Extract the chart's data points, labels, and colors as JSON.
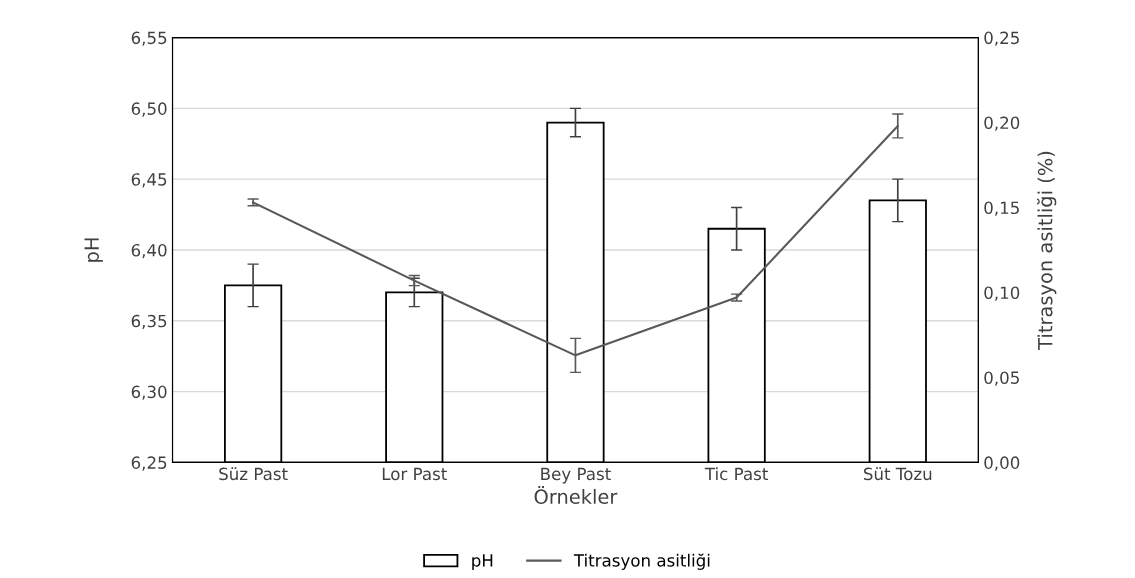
{
  "chart_data": {
    "type": "bar",
    "xlabel": "Örnekler",
    "ylabel": "pH",
    "y2label": "Titrasyon asitliği (%)",
    "categories": [
      "Süz Past",
      "Lor Past",
      "Bey Past",
      "Tic Past",
      "Süt Tozu"
    ],
    "series": [
      {
        "name": "pH",
        "color": "#ffffff",
        "values": [
          6.375,
          6.37,
          6.49,
          6.415,
          6.435
        ],
        "errors": [
          0.015,
          0.01,
          0.01,
          0.015,
          0.015
        ]
      },
      {
        "name": "Titrasyon asitliği",
        "type": "line",
        "axis": "y2",
        "color": "#595959",
        "values": [
          0.153,
          0.107,
          0.063,
          0.097,
          0.198
        ],
        "errors": [
          0.002,
          0.003,
          0.01,
          0.002,
          0.007
        ]
      }
    ],
    "ylim": [
      6.25,
      6.55
    ],
    "yticks": [
      {
        "value": 6.25,
        "label": "6,25"
      },
      {
        "value": 6.3,
        "label": "6,30"
      },
      {
        "value": 6.35,
        "label": "6,35"
      },
      {
        "value": 6.4,
        "label": "6,40"
      },
      {
        "value": 6.45,
        "label": "6,45"
      },
      {
        "value": 6.5,
        "label": "6,50"
      },
      {
        "value": 6.55,
        "label": "6,55"
      }
    ],
    "y2lim": [
      0,
      0.25
    ],
    "y2ticks": [
      {
        "value": 0,
        "label": "0,00"
      },
      {
        "value": 0.05,
        "label": "0,05"
      },
      {
        "value": 0.1,
        "label": "0,10"
      },
      {
        "value": 0.15,
        "label": "0,15"
      },
      {
        "value": 0.2,
        "label": "0,20"
      },
      {
        "value": 0.25,
        "label": "0,25"
      }
    ],
    "grid": "y",
    "legend": "bottom",
    "marker": "none",
    "line_style": "solid"
  }
}
